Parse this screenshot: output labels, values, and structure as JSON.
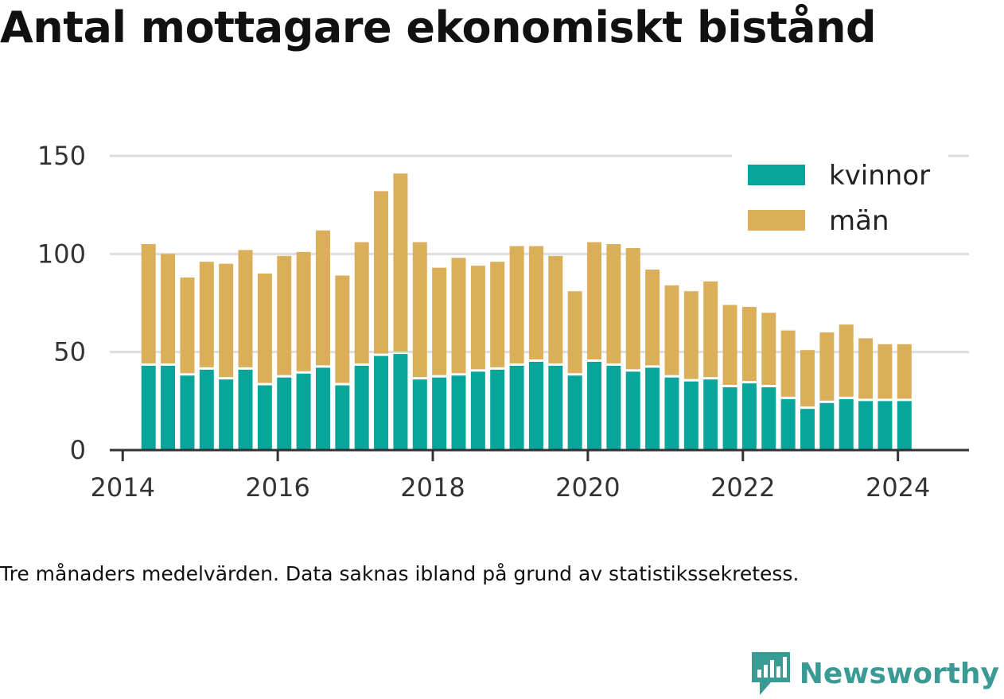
{
  "title": "Antal mottagare ekonomiskt bistånd",
  "note": "Tre månaders medelvärden. Data saknas ibland på grund av statistikssekretess.",
  "brand": {
    "name": "Newsworthy",
    "icon": "newsworthy-logo-icon"
  },
  "colors": {
    "kvinnor": "#07a59a",
    "man": "#dbae5a",
    "grid": "#dddddd",
    "axis": "#333333"
  },
  "chart_data": {
    "type": "bar",
    "stacked": true,
    "x": [
      "2014-05",
      "2014-08",
      "2014-11",
      "2015-02",
      "2015-05",
      "2015-08",
      "2015-11",
      "2016-02",
      "2016-05",
      "2016-08",
      "2016-11",
      "2017-02",
      "2017-05",
      "2017-08",
      "2017-11",
      "2018-02",
      "2018-05",
      "2018-08",
      "2018-11",
      "2019-02",
      "2019-05",
      "2019-08",
      "2019-11",
      "2020-02",
      "2020-05",
      "2020-08",
      "2020-11",
      "2021-02",
      "2021-05",
      "2021-08",
      "2021-11",
      "2022-02",
      "2022-05",
      "2022-08",
      "2022-11",
      "2023-02",
      "2023-05",
      "2023-08",
      "2023-11",
      "2024-02"
    ],
    "series": [
      {
        "name": "kvinnor",
        "values": [
          43,
          43,
          38,
          41,
          36,
          41,
          33,
          37,
          39,
          42,
          33,
          43,
          48,
          49,
          36,
          37,
          38,
          40,
          41,
          43,
          45,
          43,
          38,
          45,
          43,
          40,
          42,
          37,
          35,
          36,
          32,
          34,
          32,
          26,
          21,
          24,
          26,
          25,
          25,
          25
        ]
      },
      {
        "name": "män",
        "values": [
          62,
          57,
          50,
          55,
          59,
          61,
          57,
          62,
          62,
          70,
          56,
          63,
          84,
          92,
          70,
          56,
          60,
          54,
          55,
          61,
          59,
          56,
          43,
          61,
          62,
          63,
          50,
          47,
          46,
          50,
          42,
          39,
          38,
          35,
          30,
          36,
          38,
          32,
          29,
          29
        ]
      }
    ],
    "xticks": [
      "2014",
      "2016",
      "2018",
      "2020",
      "2022",
      "2024"
    ],
    "xlim": [
      "2013-11",
      "2024-12"
    ],
    "yticks": [
      "0",
      "50",
      "100",
      "150"
    ],
    "ylim": [
      0,
      150
    ],
    "grid": true,
    "legend": "top-right",
    "legend_labels": [
      "kvinnor",
      "män"
    ]
  }
}
